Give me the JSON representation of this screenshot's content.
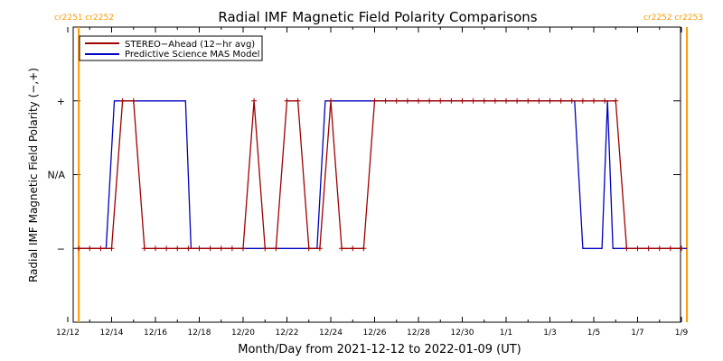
{
  "chart_data": {
    "type": "line",
    "title": "Radial IMF Magnetic Field Polarity Comparisons",
    "xlabel": "Month/Day from 2021-12-12 to 2022-01-09 (UT)",
    "ylabel": "Radial IMF Magnetic Field Polarity (−,+)",
    "x_range": [
      "2021-12-12",
      "2022-01-09"
    ],
    "ylim": [
      -2,
      2
    ],
    "x_ticks": [
      {
        "x": "2021-12-12",
        "label": "12/12"
      },
      {
        "x": "2021-12-14",
        "label": "12/14"
      },
      {
        "x": "2021-12-16",
        "label": "12/16"
      },
      {
        "x": "2021-12-18",
        "label": "12/18"
      },
      {
        "x": "2021-12-20",
        "label": "12/20"
      },
      {
        "x": "2021-12-22",
        "label": "12/22"
      },
      {
        "x": "2021-12-24",
        "label": "12/24"
      },
      {
        "x": "2021-12-26",
        "label": "12/26"
      },
      {
        "x": "2021-12-28",
        "label": "12/28"
      },
      {
        "x": "2021-12-30",
        "label": "12/30"
      },
      {
        "x": "2022-01-01",
        "label": "1/1"
      },
      {
        "x": "2022-01-03",
        "label": "1/3"
      },
      {
        "x": "2022-01-05",
        "label": "1/5"
      },
      {
        "x": "2022-01-07",
        "label": "1/7"
      },
      {
        "x": "2022-01-09",
        "label": "1/9"
      }
    ],
    "y_ticks": [
      {
        "y": 1,
        "label": "+"
      },
      {
        "y": 0,
        "label": "N/A"
      },
      {
        "y": -1,
        "label": "−"
      }
    ],
    "legend": {
      "placement": "top-left",
      "entries": [
        {
          "name": "STEREO−Ahead (12−hr avg)",
          "color": "#a00000"
        },
        {
          "name": "Predictive Science MAS Model",
          "color": "#0000c0"
        }
      ]
    },
    "markers": [
      {
        "x": "2021-12-12T12:00",
        "label": "cr2251 cr2252",
        "side": "left",
        "color": "#ff9900"
      },
      {
        "x": "2022-01-09T06:00",
        "label": "cr2252 cr2253",
        "side": "right",
        "color": "#ff9900"
      }
    ],
    "series": [
      {
        "name": "STEREO−Ahead (12−hr avg)",
        "color": "#a00000",
        "style": "line+plus",
        "points": [
          [
            "2021-12-12T12:00",
            -1
          ],
          [
            "2021-12-13T00:00",
            -1
          ],
          [
            "2021-12-13T12:00",
            -1
          ],
          [
            "2021-12-14T00:00",
            -1
          ],
          [
            "2021-12-14T12:00",
            1
          ],
          [
            "2021-12-15T00:00",
            1
          ],
          [
            "2021-12-15T12:00",
            -1
          ],
          [
            "2021-12-16T00:00",
            -1
          ],
          [
            "2021-12-16T12:00",
            -1
          ],
          [
            "2021-12-17T00:00",
            -1
          ],
          [
            "2021-12-17T12:00",
            -1
          ],
          [
            "2021-12-18T00:00",
            -1
          ],
          [
            "2021-12-18T12:00",
            -1
          ],
          [
            "2021-12-19T00:00",
            -1
          ],
          [
            "2021-12-19T12:00",
            -1
          ],
          [
            "2021-12-20T00:00",
            -1
          ],
          [
            "2021-12-20T12:00",
            1
          ],
          [
            "2021-12-21T00:00",
            -1
          ],
          [
            "2021-12-21T12:00",
            -1
          ],
          [
            "2021-12-22T00:00",
            1
          ],
          [
            "2021-12-22T12:00",
            1
          ],
          [
            "2021-12-23T00:00",
            -1
          ],
          [
            "2021-12-23T12:00",
            -1
          ],
          [
            "2021-12-24T00:00",
            1
          ],
          [
            "2021-12-24T12:00",
            -1
          ],
          [
            "2021-12-25T00:00",
            -1
          ],
          [
            "2021-12-25T12:00",
            -1
          ],
          [
            "2021-12-26T00:00",
            1
          ],
          [
            "2021-12-26T12:00",
            1
          ],
          [
            "2021-12-27T00:00",
            1
          ],
          [
            "2021-12-27T12:00",
            1
          ],
          [
            "2021-12-28T00:00",
            1
          ],
          [
            "2021-12-28T12:00",
            1
          ],
          [
            "2021-12-29T00:00",
            1
          ],
          [
            "2021-12-29T12:00",
            1
          ],
          [
            "2021-12-30T00:00",
            1
          ],
          [
            "2021-12-30T12:00",
            1
          ],
          [
            "2021-12-31T00:00",
            1
          ],
          [
            "2021-12-31T12:00",
            1
          ],
          [
            "2022-01-01T00:00",
            1
          ],
          [
            "2022-01-01T12:00",
            1
          ],
          [
            "2022-01-02T00:00",
            1
          ],
          [
            "2022-01-02T12:00",
            1
          ],
          [
            "2022-01-03T00:00",
            1
          ],
          [
            "2022-01-03T12:00",
            1
          ],
          [
            "2022-01-04T00:00",
            1
          ],
          [
            "2022-01-04T12:00",
            1
          ],
          [
            "2022-01-05T00:00",
            1
          ],
          [
            "2022-01-05T12:00",
            1
          ],
          [
            "2022-01-06T00:00",
            1
          ],
          [
            "2022-01-06T12:00",
            -1
          ],
          [
            "2022-01-07T00:00",
            -1
          ],
          [
            "2022-01-07T12:00",
            -1
          ],
          [
            "2022-01-08T00:00",
            -1
          ],
          [
            "2022-01-08T12:00",
            -1
          ],
          [
            "2022-01-09T00:00",
            -1
          ]
        ]
      },
      {
        "name": "Predictive Science MAS Model",
        "color": "#0000c0",
        "style": "line",
        "points": [
          [
            "2021-12-12T12:00",
            -1
          ],
          [
            "2021-12-13T18:00",
            -1
          ],
          [
            "2021-12-14T03:00",
            1
          ],
          [
            "2021-12-17T09:00",
            1
          ],
          [
            "2021-12-17T15:00",
            -1
          ],
          [
            "2021-12-23T09:00",
            -1
          ],
          [
            "2021-12-23T18:00",
            1
          ],
          [
            "2022-01-04T03:00",
            1
          ],
          [
            "2022-01-04T12:00",
            -1
          ],
          [
            "2022-01-05T09:00",
            -1
          ],
          [
            "2022-01-05T15:00",
            1
          ],
          [
            "2022-01-05T21:00",
            -1
          ],
          [
            "2022-01-09T06:00",
            -1
          ]
        ]
      }
    ]
  }
}
